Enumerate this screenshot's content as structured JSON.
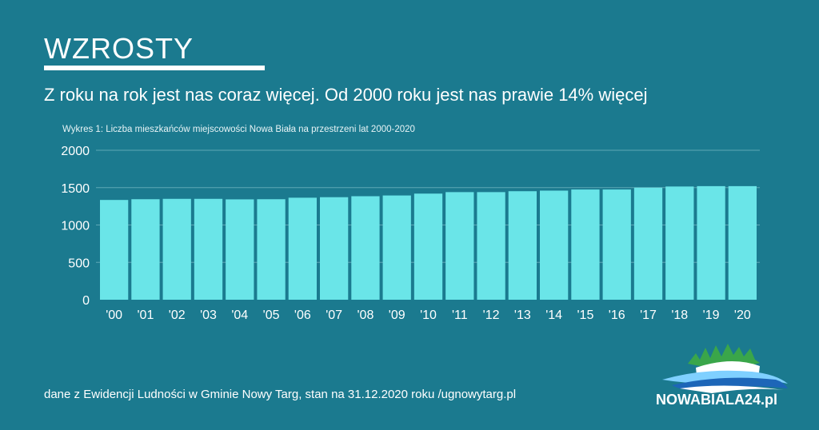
{
  "heading": "WZROSTY",
  "subtitle": "Z roku na rok jest nas coraz więcej. Od 2000 roku jest nas prawie 14% więcej",
  "source_note": "dane z Ewidencji Ludności w Gminie Nowy Targ, stan na 31.12.2020 roku /ugnowytarg.pl",
  "logo_text": "NOWABIALA24.pl",
  "colors": {
    "background": "#1b7a8f",
    "bar": "#6ae5e8",
    "grid": "#5ea8b6"
  },
  "chart_data": {
    "type": "bar",
    "title": "Wykres 1: Liczba mieszkańców miejscowości Nowa Biała na przestrzeni lat 2000-2020",
    "xlabel": "",
    "ylabel": "",
    "ylim": [
      0,
      2000
    ],
    "yticks": [
      0,
      500,
      1000,
      1500,
      2000
    ],
    "grid": true,
    "categories": [
      "'00",
      "'01",
      "'02",
      "'03",
      "'04",
      "'05",
      "'06",
      "'07",
      "'08",
      "'09",
      "'10",
      "'11",
      "'12",
      "'13",
      "'14",
      "'15",
      "'16",
      "'17",
      "'18",
      "'19",
      "'20"
    ],
    "values": [
      1335,
      1345,
      1350,
      1350,
      1343,
      1345,
      1365,
      1372,
      1385,
      1395,
      1420,
      1440,
      1440,
      1452,
      1460,
      1475,
      1475,
      1500,
      1515,
      1520,
      1520
    ]
  }
}
